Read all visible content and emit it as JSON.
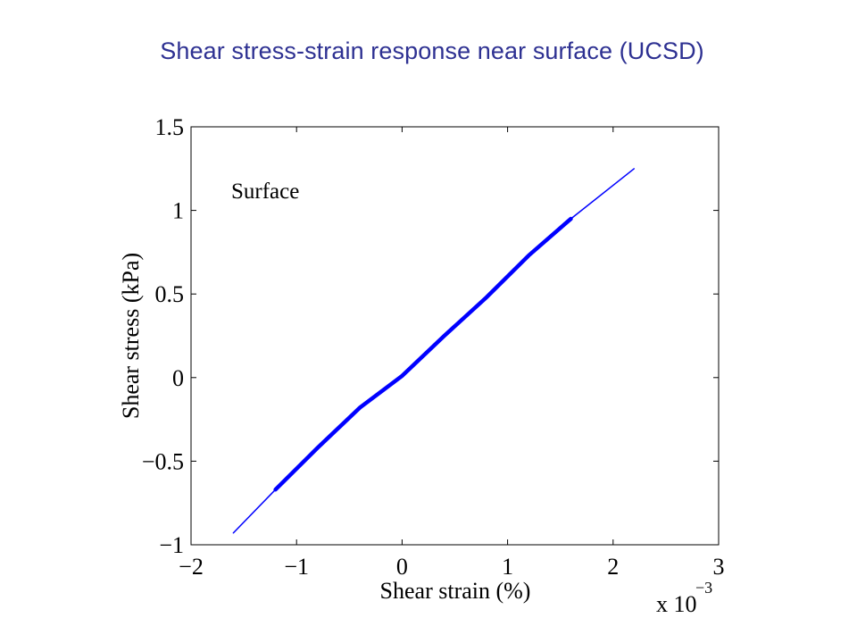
{
  "slide": {
    "title": "Shear stress-strain response near surface (UCSD)"
  },
  "chart_data": {
    "type": "line",
    "annotation": "Surface",
    "xlabel": "Shear strain (%)",
    "ylabel": "Shear stress (kPa)",
    "x_multiplier_label": "x 10",
    "x_multiplier_exponent": "−3",
    "xlim": [
      -2,
      3
    ],
    "ylim": [
      -1,
      1.5
    ],
    "x_ticks": [
      -2,
      -1,
      0,
      1,
      2,
      3
    ],
    "x_tick_labels": [
      "−2",
      "−1",
      "0",
      "1",
      "2",
      "3"
    ],
    "y_ticks": [
      -1,
      -0.5,
      0,
      0.5,
      1,
      1.5
    ],
    "y_tick_labels": [
      "−1",
      "−0.5",
      "0",
      "0.5",
      "1",
      "1.5"
    ],
    "grid": false,
    "line_color": "#0000ff",
    "series": [
      {
        "x": [
          -1.6,
          -1.2,
          -0.8,
          -0.4,
          0,
          0.4,
          0.8,
          1.2,
          1.6,
          2.2
        ],
        "y": [
          -0.93,
          -0.67,
          -0.42,
          -0.18,
          0.01,
          0.25,
          0.48,
          0.73,
          0.95,
          1.25
        ]
      }
    ]
  }
}
